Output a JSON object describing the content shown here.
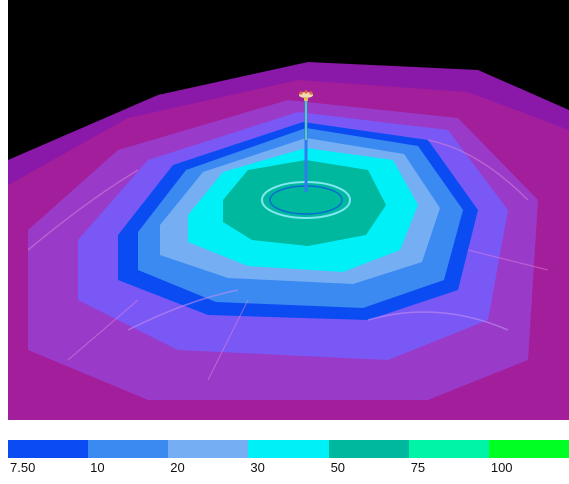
{
  "legend": {
    "bins": [
      {
        "color": "#0a4cf2",
        "label": "7.50"
      },
      {
        "color": "#3a8af2",
        "label": "10"
      },
      {
        "color": "#76aef4",
        "label": "20"
      },
      {
        "color": "#00f0f8",
        "label": "30"
      },
      {
        "color": "#00b89e",
        "label": "50"
      },
      {
        "color": "#00f4a8",
        "label": "75"
      },
      {
        "color": "#00ff22",
        "label": "100"
      }
    ]
  },
  "scene": {
    "background": "#000000",
    "terrain_base": "#8a18a8",
    "bands": [
      "#a21e9a",
      "#9a3ac8",
      "#7a58f6",
      "#0a4cf2",
      "#3a8af2",
      "#76aef4",
      "#00f0f8",
      "#00b89e"
    ],
    "mast_color": "#2f7cf0"
  }
}
